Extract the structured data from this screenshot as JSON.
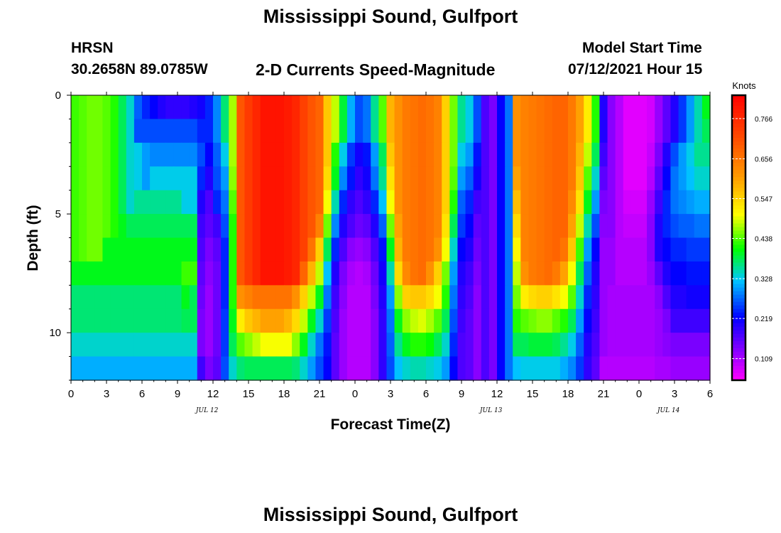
{
  "title": "Mississippi Sound, Gulfport",
  "footer_title": "Mississippi Sound, Gulfport",
  "station": {
    "id": "HRSN",
    "coords": "30.2658N  89.0785W"
  },
  "model": {
    "label": "Model Start Time",
    "time": "07/12/2021 Hour 15"
  },
  "chart_data": {
    "type": "heatmap",
    "title": "2-D Currents Speed-Magnitude",
    "xlabel": "Forecast Time(Z)",
    "ylabel": "Depth (ft)",
    "units": "Knots",
    "x_tick_labels": [
      "0",
      "3",
      "6",
      "9",
      "12",
      "15",
      "18",
      "21",
      "0",
      "3",
      "6",
      "9",
      "12",
      "15",
      "18",
      "21",
      "0",
      "3",
      "6"
    ],
    "x_range_hours": [
      0,
      54
    ],
    "date_labels": [
      {
        "hour": 11.5,
        "label": "JUL 12"
      },
      {
        "hour": 35.5,
        "label": "JUL 13"
      },
      {
        "hour": 50.5,
        "label": "JUL 14"
      }
    ],
    "y_ticks": [
      0,
      5,
      10
    ],
    "y_range_ft": [
      0,
      12
    ],
    "y_reversed": true,
    "colorbar_ticks": [
      0.766,
      0.656,
      0.547,
      0.438,
      0.328,
      0.219,
      0.109
    ],
    "colorbar_range": [
      0.05,
      0.83
    ],
    "time_step_hours": 1,
    "depth_levels_ft": [
      0.5,
      1.5,
      2.5,
      3.5,
      4.5,
      5.5,
      6.5,
      7.5,
      8.5,
      9.5,
      10.5,
      11.5
    ],
    "speed_knots_by_depth": [
      [
        0.43,
        0.44,
        0.45,
        0.45,
        0.44,
        0.42,
        0.38,
        0.34,
        0.27,
        0.24,
        0.22,
        0.2,
        0.19,
        0.19,
        0.19,
        0.2,
        0.21,
        0.24,
        0.29,
        0.37,
        0.47,
        0.7,
        0.74,
        0.77,
        0.8,
        0.8,
        0.8,
        0.79,
        0.77,
        0.73,
        0.7,
        0.68,
        0.56,
        0.48,
        0.39,
        0.31,
        0.26,
        0.28,
        0.36,
        0.44,
        0.58,
        0.62,
        0.65,
        0.66,
        0.67,
        0.66,
        0.64,
        0.55,
        0.45,
        0.36,
        0.33,
        0.26,
        0.17,
        0.14,
        0.22,
        0.28,
        0.62,
        0.64,
        0.65,
        0.66,
        0.67,
        0.68,
        0.68,
        0.65,
        0.6,
        0.52,
        0.42,
        0.2,
        0.13,
        0.1,
        0.07,
        0.07,
        0.07,
        0.08,
        0.12,
        0.16,
        0.2,
        0.25,
        0.3,
        0.35,
        0.4
      ],
      [
        0.43,
        0.44,
        0.45,
        0.45,
        0.44,
        0.42,
        0.38,
        0.34,
        0.26,
        0.26,
        0.26,
        0.26,
        0.26,
        0.26,
        0.26,
        0.26,
        0.24,
        0.24,
        0.29,
        0.37,
        0.47,
        0.7,
        0.74,
        0.77,
        0.8,
        0.8,
        0.8,
        0.79,
        0.77,
        0.73,
        0.7,
        0.68,
        0.56,
        0.48,
        0.39,
        0.31,
        0.26,
        0.28,
        0.36,
        0.44,
        0.58,
        0.62,
        0.65,
        0.66,
        0.67,
        0.66,
        0.64,
        0.55,
        0.45,
        0.36,
        0.33,
        0.26,
        0.17,
        0.14,
        0.22,
        0.28,
        0.62,
        0.64,
        0.65,
        0.66,
        0.67,
        0.68,
        0.68,
        0.65,
        0.6,
        0.52,
        0.42,
        0.2,
        0.13,
        0.1,
        0.07,
        0.07,
        0.07,
        0.08,
        0.12,
        0.16,
        0.2,
        0.25,
        0.3,
        0.35,
        0.38
      ],
      [
        0.43,
        0.44,
        0.45,
        0.45,
        0.44,
        0.42,
        0.38,
        0.34,
        0.33,
        0.3,
        0.29,
        0.29,
        0.29,
        0.29,
        0.29,
        0.29,
        0.26,
        0.22,
        0.27,
        0.33,
        0.47,
        0.7,
        0.74,
        0.77,
        0.8,
        0.8,
        0.8,
        0.79,
        0.77,
        0.73,
        0.7,
        0.68,
        0.56,
        0.42,
        0.33,
        0.25,
        0.21,
        0.23,
        0.3,
        0.38,
        0.56,
        0.62,
        0.65,
        0.66,
        0.67,
        0.66,
        0.64,
        0.55,
        0.45,
        0.33,
        0.3,
        0.23,
        0.17,
        0.14,
        0.22,
        0.28,
        0.62,
        0.64,
        0.65,
        0.66,
        0.67,
        0.68,
        0.68,
        0.65,
        0.58,
        0.48,
        0.38,
        0.18,
        0.13,
        0.1,
        0.07,
        0.07,
        0.07,
        0.09,
        0.14,
        0.2,
        0.26,
        0.3,
        0.33,
        0.36,
        0.36
      ],
      [
        0.43,
        0.44,
        0.45,
        0.45,
        0.44,
        0.42,
        0.38,
        0.34,
        0.33,
        0.3,
        0.33,
        0.33,
        0.33,
        0.33,
        0.33,
        0.33,
        0.24,
        0.2,
        0.26,
        0.3,
        0.46,
        0.7,
        0.74,
        0.77,
        0.8,
        0.8,
        0.8,
        0.79,
        0.77,
        0.73,
        0.7,
        0.68,
        0.54,
        0.4,
        0.29,
        0.23,
        0.19,
        0.21,
        0.28,
        0.36,
        0.53,
        0.62,
        0.65,
        0.66,
        0.67,
        0.66,
        0.64,
        0.55,
        0.44,
        0.3,
        0.27,
        0.21,
        0.17,
        0.14,
        0.22,
        0.28,
        0.6,
        0.64,
        0.65,
        0.66,
        0.67,
        0.68,
        0.68,
        0.65,
        0.56,
        0.44,
        0.34,
        0.16,
        0.13,
        0.1,
        0.07,
        0.07,
        0.07,
        0.1,
        0.16,
        0.22,
        0.28,
        0.3,
        0.32,
        0.34,
        0.34
      ],
      [
        0.43,
        0.44,
        0.45,
        0.45,
        0.44,
        0.42,
        0.38,
        0.34,
        0.36,
        0.36,
        0.36,
        0.36,
        0.36,
        0.36,
        0.33,
        0.33,
        0.2,
        0.17,
        0.24,
        0.28,
        0.44,
        0.7,
        0.74,
        0.77,
        0.8,
        0.8,
        0.8,
        0.79,
        0.77,
        0.73,
        0.7,
        0.68,
        0.5,
        0.35,
        0.24,
        0.19,
        0.17,
        0.19,
        0.24,
        0.32,
        0.5,
        0.62,
        0.65,
        0.66,
        0.67,
        0.66,
        0.64,
        0.55,
        0.42,
        0.27,
        0.24,
        0.18,
        0.17,
        0.14,
        0.22,
        0.28,
        0.57,
        0.64,
        0.65,
        0.66,
        0.67,
        0.68,
        0.68,
        0.63,
        0.53,
        0.4,
        0.3,
        0.14,
        0.13,
        0.1,
        0.08,
        0.08,
        0.08,
        0.12,
        0.18,
        0.24,
        0.28,
        0.29,
        0.3,
        0.31,
        0.31
      ],
      [
        0.43,
        0.44,
        0.45,
        0.45,
        0.44,
        0.42,
        0.4,
        0.38,
        0.38,
        0.38,
        0.38,
        0.38,
        0.38,
        0.38,
        0.38,
        0.38,
        0.18,
        0.16,
        0.18,
        0.26,
        0.42,
        0.7,
        0.74,
        0.77,
        0.8,
        0.8,
        0.8,
        0.79,
        0.77,
        0.73,
        0.7,
        0.64,
        0.45,
        0.29,
        0.2,
        0.17,
        0.15,
        0.16,
        0.2,
        0.27,
        0.45,
        0.6,
        0.65,
        0.66,
        0.67,
        0.66,
        0.64,
        0.53,
        0.38,
        0.25,
        0.22,
        0.16,
        0.17,
        0.14,
        0.22,
        0.28,
        0.54,
        0.64,
        0.65,
        0.66,
        0.67,
        0.68,
        0.68,
        0.6,
        0.48,
        0.35,
        0.26,
        0.13,
        0.13,
        0.1,
        0.09,
        0.09,
        0.09,
        0.13,
        0.2,
        0.24,
        0.26,
        0.27,
        0.27,
        0.28,
        0.28
      ],
      [
        0.43,
        0.44,
        0.45,
        0.45,
        0.4,
        0.4,
        0.4,
        0.4,
        0.4,
        0.4,
        0.4,
        0.4,
        0.4,
        0.4,
        0.4,
        0.4,
        0.17,
        0.14,
        0.16,
        0.24,
        0.42,
        0.7,
        0.74,
        0.77,
        0.8,
        0.8,
        0.8,
        0.79,
        0.77,
        0.73,
        0.66,
        0.55,
        0.38,
        0.24,
        0.17,
        0.13,
        0.12,
        0.13,
        0.17,
        0.23,
        0.4,
        0.58,
        0.65,
        0.66,
        0.67,
        0.66,
        0.62,
        0.5,
        0.34,
        0.22,
        0.2,
        0.15,
        0.17,
        0.14,
        0.22,
        0.28,
        0.51,
        0.64,
        0.65,
        0.66,
        0.67,
        0.68,
        0.66,
        0.56,
        0.43,
        0.3,
        0.22,
        0.12,
        0.12,
        0.1,
        0.1,
        0.1,
        0.1,
        0.13,
        0.2,
        0.22,
        0.24,
        0.24,
        0.25,
        0.25,
        0.25
      ],
      [
        0.4,
        0.4,
        0.4,
        0.4,
        0.4,
        0.4,
        0.4,
        0.4,
        0.4,
        0.4,
        0.4,
        0.4,
        0.4,
        0.4,
        0.43,
        0.43,
        0.16,
        0.13,
        0.15,
        0.24,
        0.42,
        0.7,
        0.74,
        0.77,
        0.8,
        0.8,
        0.8,
        0.79,
        0.77,
        0.68,
        0.58,
        0.48,
        0.32,
        0.2,
        0.14,
        0.11,
        0.1,
        0.11,
        0.15,
        0.21,
        0.35,
        0.54,
        0.63,
        0.66,
        0.67,
        0.62,
        0.55,
        0.45,
        0.3,
        0.2,
        0.18,
        0.14,
        0.17,
        0.14,
        0.22,
        0.28,
        0.48,
        0.62,
        0.65,
        0.66,
        0.67,
        0.65,
        0.6,
        0.5,
        0.38,
        0.27,
        0.2,
        0.12,
        0.12,
        0.1,
        0.1,
        0.1,
        0.1,
        0.12,
        0.16,
        0.2,
        0.22,
        0.22,
        0.23,
        0.23,
        0.23
      ],
      [
        0.37,
        0.37,
        0.37,
        0.37,
        0.37,
        0.37,
        0.37,
        0.37,
        0.37,
        0.37,
        0.37,
        0.37,
        0.37,
        0.37,
        0.4,
        0.38,
        0.15,
        0.12,
        0.15,
        0.24,
        0.42,
        0.62,
        0.64,
        0.66,
        0.66,
        0.66,
        0.66,
        0.66,
        0.62,
        0.55,
        0.48,
        0.4,
        0.28,
        0.18,
        0.13,
        0.1,
        0.1,
        0.1,
        0.14,
        0.2,
        0.3,
        0.46,
        0.55,
        0.56,
        0.56,
        0.54,
        0.5,
        0.42,
        0.28,
        0.19,
        0.17,
        0.13,
        0.17,
        0.14,
        0.22,
        0.28,
        0.45,
        0.52,
        0.54,
        0.55,
        0.55,
        0.53,
        0.5,
        0.44,
        0.34,
        0.24,
        0.19,
        0.12,
        0.11,
        0.11,
        0.11,
        0.11,
        0.11,
        0.11,
        0.13,
        0.17,
        0.2,
        0.2,
        0.21,
        0.21,
        0.21
      ],
      [
        0.37,
        0.37,
        0.37,
        0.37,
        0.37,
        0.37,
        0.37,
        0.37,
        0.37,
        0.37,
        0.37,
        0.37,
        0.37,
        0.37,
        0.38,
        0.38,
        0.14,
        0.12,
        0.15,
        0.25,
        0.4,
        0.52,
        0.56,
        0.58,
        0.6,
        0.6,
        0.6,
        0.58,
        0.54,
        0.48,
        0.4,
        0.34,
        0.25,
        0.17,
        0.12,
        0.1,
        0.1,
        0.1,
        0.13,
        0.19,
        0.28,
        0.4,
        0.46,
        0.48,
        0.49,
        0.47,
        0.44,
        0.38,
        0.26,
        0.18,
        0.16,
        0.13,
        0.17,
        0.14,
        0.22,
        0.28,
        0.42,
        0.44,
        0.45,
        0.46,
        0.46,
        0.44,
        0.42,
        0.38,
        0.3,
        0.22,
        0.18,
        0.12,
        0.11,
        0.11,
        0.11,
        0.11,
        0.11,
        0.11,
        0.12,
        0.14,
        0.18,
        0.18,
        0.18,
        0.18,
        0.18
      ],
      [
        0.34,
        0.34,
        0.34,
        0.34,
        0.34,
        0.34,
        0.34,
        0.34,
        0.34,
        0.34,
        0.34,
        0.34,
        0.34,
        0.34,
        0.34,
        0.34,
        0.14,
        0.12,
        0.15,
        0.25,
        0.38,
        0.44,
        0.46,
        0.48,
        0.5,
        0.5,
        0.5,
        0.5,
        0.46,
        0.4,
        0.34,
        0.28,
        0.23,
        0.16,
        0.12,
        0.1,
        0.1,
        0.1,
        0.13,
        0.19,
        0.27,
        0.36,
        0.4,
        0.42,
        0.42,
        0.41,
        0.38,
        0.34,
        0.24,
        0.17,
        0.16,
        0.13,
        0.17,
        0.14,
        0.22,
        0.28,
        0.38,
        0.38,
        0.39,
        0.39,
        0.39,
        0.38,
        0.36,
        0.33,
        0.27,
        0.2,
        0.17,
        0.12,
        0.11,
        0.11,
        0.11,
        0.11,
        0.11,
        0.11,
        0.12,
        0.13,
        0.14,
        0.14,
        0.14,
        0.14,
        0.14
      ],
      [
        0.31,
        0.31,
        0.31,
        0.31,
        0.31,
        0.31,
        0.31,
        0.31,
        0.31,
        0.31,
        0.31,
        0.31,
        0.31,
        0.31,
        0.31,
        0.31,
        0.18,
        0.14,
        0.16,
        0.26,
        0.34,
        0.37,
        0.38,
        0.38,
        0.38,
        0.38,
        0.38,
        0.38,
        0.37,
        0.34,
        0.3,
        0.26,
        0.22,
        0.16,
        0.12,
        0.1,
        0.1,
        0.1,
        0.13,
        0.19,
        0.26,
        0.32,
        0.34,
        0.35,
        0.35,
        0.34,
        0.33,
        0.3,
        0.22,
        0.17,
        0.16,
        0.13,
        0.17,
        0.14,
        0.22,
        0.28,
        0.32,
        0.33,
        0.33,
        0.33,
        0.33,
        0.33,
        0.31,
        0.29,
        0.25,
        0.19,
        0.16,
        0.1,
        0.1,
        0.1,
        0.1,
        0.1,
        0.1,
        0.1,
        0.11,
        0.11,
        0.12,
        0.12,
        0.12,
        0.12,
        0.12
      ]
    ],
    "cell_columns_note": ""
  }
}
